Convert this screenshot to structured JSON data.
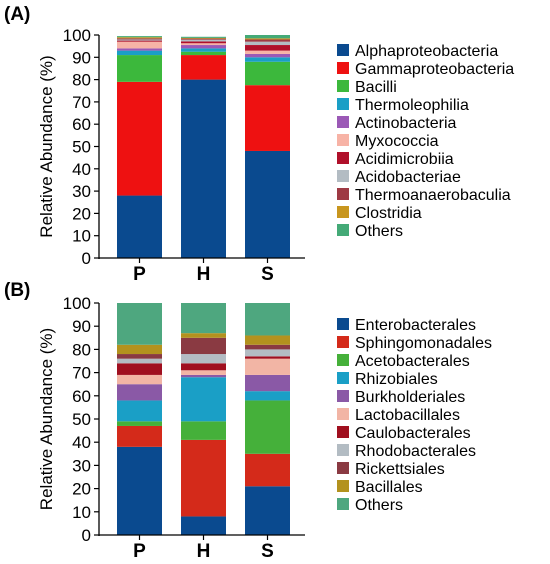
{
  "chart_data": [
    {
      "panel_label": "(A)",
      "type": "bar",
      "stacked": true,
      "ylabel": "Relative Abundance (%)",
      "ylim": [
        0,
        100
      ],
      "yticks": [
        0,
        10,
        20,
        30,
        40,
        50,
        60,
        70,
        80,
        90,
        100
      ],
      "categories": [
        "P",
        "H",
        "S"
      ],
      "series": [
        {
          "name": "Alphaproteobacteria",
          "color": "#0a4a8f",
          "values": [
            28,
            80,
            48
          ]
        },
        {
          "name": "Gammaproteobacteria",
          "color": "#ee1111",
          "values": [
            51,
            11,
            29.5
          ]
        },
        {
          "name": "Bacilli",
          "color": "#3cb83c",
          "values": [
            12,
            1.5,
            10.5
          ]
        },
        {
          "name": "Thermoleophilia",
          "color": "#1a9fc6",
          "values": [
            2,
            1.5,
            2
          ]
        },
        {
          "name": "Actinobacteria",
          "color": "#9b59b6",
          "values": [
            1,
            1.5,
            1.5
          ]
        },
        {
          "name": "Myxococcia",
          "color": "#f7b3a6",
          "values": [
            3,
            0.8,
            1.5
          ]
        },
        {
          "name": "Acidimicrobiia",
          "color": "#b0102a",
          "values": [
            0.5,
            0.8,
            2.5
          ]
        },
        {
          "name": "Acidobacteriae",
          "color": "#b3bcc3",
          "values": [
            0.5,
            0.8,
            1.5
          ]
        },
        {
          "name": "Thermoanaerobaculia",
          "color": "#9e3a44",
          "values": [
            0.5,
            0.5,
            1
          ]
        },
        {
          "name": "Clostridia",
          "color": "#c8961e",
          "values": [
            0.5,
            0.3,
            0.5
          ]
        },
        {
          "name": "Others",
          "color": "#44aa77",
          "values": [
            0.5,
            0.5,
            1.5
          ]
        }
      ]
    },
    {
      "panel_label": "(B)",
      "type": "bar",
      "stacked": true,
      "ylabel": "Relative Abundance (%)",
      "ylim": [
        0,
        100
      ],
      "yticks": [
        0,
        10,
        20,
        30,
        40,
        50,
        60,
        70,
        80,
        90,
        100
      ],
      "categories": [
        "P",
        "H",
        "S"
      ],
      "series": [
        {
          "name": "Enterobacterales",
          "color": "#0a4a8f",
          "values": [
            38,
            8,
            21
          ]
        },
        {
          "name": "Sphingomonadales",
          "color": "#d42a1a",
          "values": [
            9,
            33,
            14
          ]
        },
        {
          "name": "Acetobacterales",
          "color": "#45b03a",
          "values": [
            2,
            8,
            23
          ]
        },
        {
          "name": "Rhizobiales",
          "color": "#1a9fc6",
          "values": [
            9,
            19,
            4
          ]
        },
        {
          "name": "Burkholderiales",
          "color": "#8a59a6",
          "values": [
            7,
            1,
            7
          ]
        },
        {
          "name": "Lactobacillales",
          "color": "#f2b5a5",
          "values": [
            4,
            2,
            7
          ]
        },
        {
          "name": "Caulobacterales",
          "color": "#a00f1f",
          "values": [
            5,
            3,
            1
          ]
        },
        {
          "name": "Rhodobacterales",
          "color": "#b3bcc3",
          "values": [
            2,
            4,
            3
          ]
        },
        {
          "name": "Rickettsiales",
          "color": "#8a3a42",
          "values": [
            2,
            7,
            2
          ]
        },
        {
          "name": "Bacillales",
          "color": "#b3921e",
          "values": [
            4,
            2,
            4
          ]
        },
        {
          "name": "Others",
          "color": "#4ea77f",
          "values": [
            18,
            13,
            14
          ]
        }
      ]
    }
  ]
}
